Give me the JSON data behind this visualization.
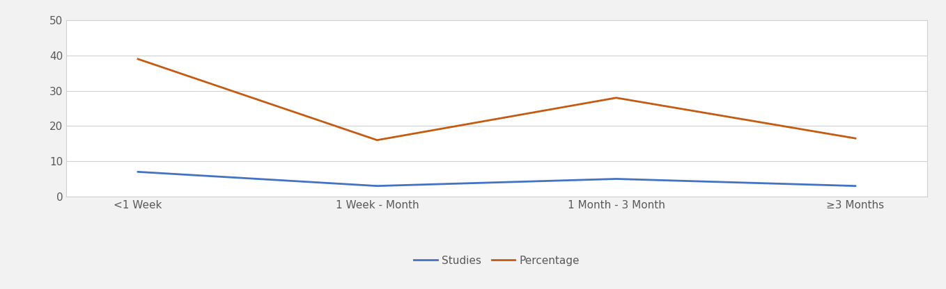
{
  "categories": [
    "<1 Week",
    "1 Week - Month",
    "1 Month - 3 Month",
    "≥3 Months"
  ],
  "studies": [
    7,
    3,
    5,
    3
  ],
  "percentage": [
    39,
    16,
    28,
    16.5
  ],
  "studies_color": "#4472C4",
  "percentage_color": "#C55A11",
  "ylim": [
    0,
    50
  ],
  "yticks": [
    0,
    10,
    20,
    30,
    40,
    50
  ],
  "legend_labels": [
    "Studies",
    "Percentage"
  ],
  "outer_bg_color": "#f2f2f2",
  "plot_bg_color": "#ffffff",
  "grid_color": "#d0d0d0",
  "line_width": 2.0,
  "tick_fontsize": 11,
  "legend_fontsize": 11,
  "border_color": "#d0d0d0"
}
